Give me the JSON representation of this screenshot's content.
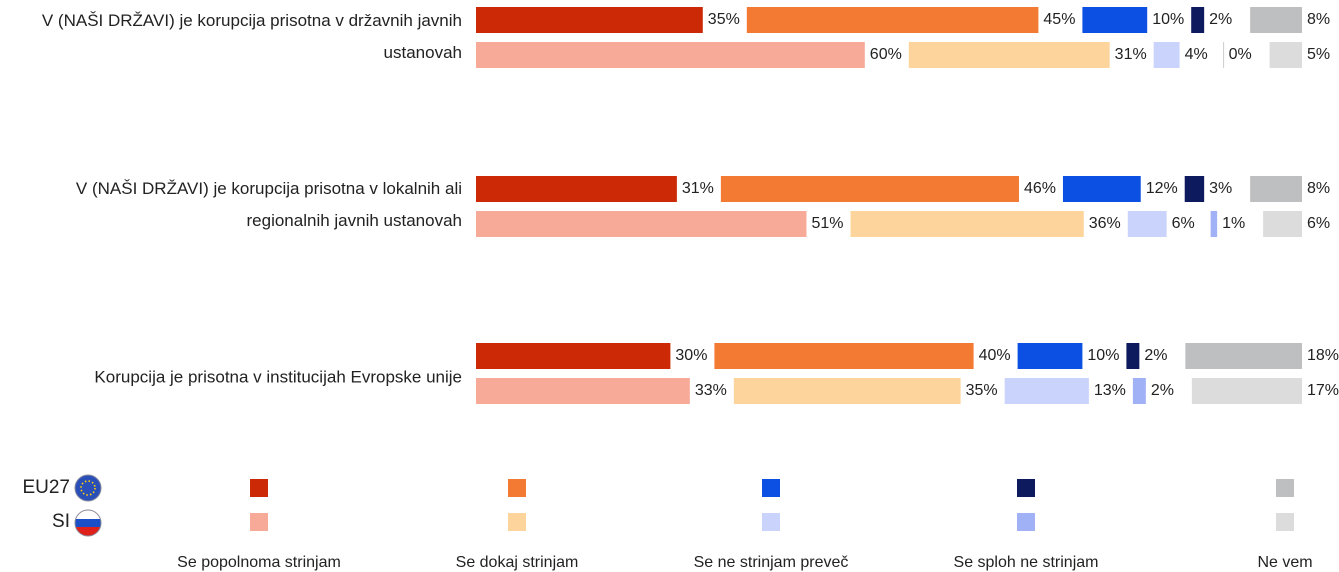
{
  "chart_data": {
    "type": "stacked-bar",
    "categories": [
      "V (NAŠI DRŽAVI) je korupcija prisotna v državnih javnih ustanovah",
      "V (NAŠI DRŽAVI) je korupcija prisotna v lokalnih ali regionalnih javnih ustanovah",
      "Korupcija je prisotna v institucijah Evropske unije"
    ],
    "groups": [
      "EU27",
      "SI"
    ],
    "responses": [
      "Se popolnoma strinjam",
      "Se dokaj strinjam",
      "Se ne strinjam preveč",
      "Se sploh ne strinjam",
      "Ne vem"
    ],
    "colors": [
      [
        "#cc2a06",
        "#f37a32",
        "#0b50e2",
        "#0e1a5e",
        "#bdbfc1"
      ],
      [
        "#f7aa98",
        "#fdd59c",
        "#cad3fb",
        "#a1b1f5",
        "#dcdcdc"
      ]
    ],
    "values": [
      [
        [
          35,
          45,
          10,
          2,
          8
        ],
        [
          60,
          31,
          4,
          0,
          5
        ]
      ],
      [
        [
          31,
          46,
          12,
          3,
          8
        ],
        [
          51,
          36,
          6,
          1,
          6
        ]
      ],
      [
        [
          30,
          40,
          10,
          2,
          18
        ],
        [
          33,
          35,
          13,
          2,
          17
        ]
      ]
    ],
    "value_labels": [
      [
        [
          "35%",
          "45%",
          "10%",
          "2%",
          "8%"
        ],
        [
          "60%",
          "31%",
          "4%",
          "0%",
          "5%"
        ]
      ],
      [
        [
          "31%",
          "46%",
          "12%",
          "3%",
          "8%"
        ],
        [
          "51%",
          "36%",
          "6%",
          "1%",
          "6%"
        ]
      ],
      [
        [
          "30%",
          "40%",
          "10%",
          "2%",
          "18%"
        ],
        [
          "33%",
          "35%",
          "13%",
          "2%",
          "17%"
        ]
      ]
    ]
  }
}
